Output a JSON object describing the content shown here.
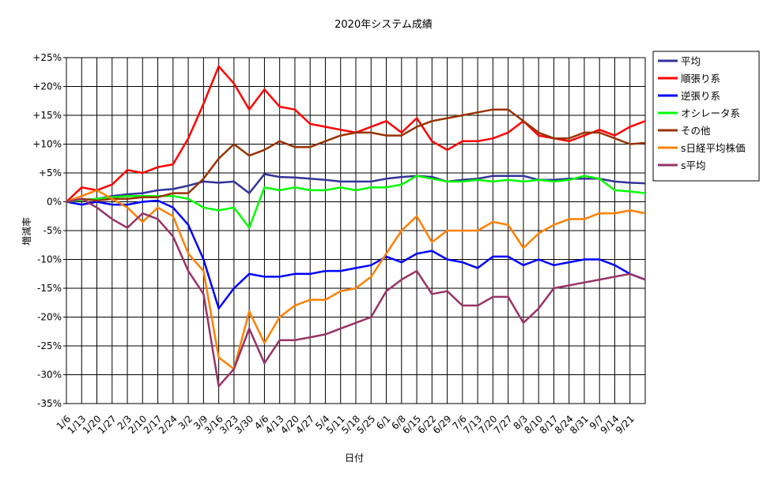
{
  "chart_data": {
    "type": "line",
    "title": "2020年システム成績",
    "xlabel": "日付",
    "ylabel": "増減率",
    "ylim": [
      -35,
      25
    ],
    "y_ticks": [
      25,
      20,
      15,
      10,
      5,
      0,
      -5,
      -10,
      -15,
      -20,
      -25,
      -30,
      -35
    ],
    "y_tick_labels": [
      "+25%",
      "+20%",
      "+15%",
      "+10%",
      "+5%",
      "0%",
      "-5%",
      "-10%",
      "-15%",
      "-20%",
      "-25%",
      "-30%",
      "-35%"
    ],
    "grid": true,
    "legend_position": "right",
    "x_tick_labels": [
      "1/6",
      "1/13",
      "1/20",
      "1/27",
      "2/3",
      "2/10",
      "2/17",
      "2/24",
      "3/2",
      "3/9",
      "3/16",
      "3/23",
      "3/30",
      "4/6",
      "4/13",
      "4/20",
      "4/27",
      "5/4",
      "5/11",
      "5/18",
      "5/25",
      "6/1",
      "6/8",
      "6/15",
      "6/22",
      "6/29",
      "7/6",
      "7/13",
      "7/20",
      "7/27",
      "8/3",
      "8/10",
      "8/17",
      "8/24",
      "8/31",
      "9/7",
      "9/14",
      "9/21"
    ],
    "series": [
      {
        "name": "平均",
        "color": "#333399",
        "points": [
          [
            0,
            0
          ],
          [
            1,
            0.3
          ],
          [
            2,
            0.5
          ],
          [
            3,
            1
          ],
          [
            4,
            1.3
          ],
          [
            5,
            1.5
          ],
          [
            6,
            2
          ],
          [
            7,
            2.2
          ],
          [
            8,
            2.8
          ],
          [
            9,
            3.5
          ],
          [
            10,
            3.3
          ],
          [
            11,
            3.5
          ],
          [
            12,
            1.5
          ],
          [
            13,
            4.8
          ],
          [
            14,
            4.3
          ],
          [
            15,
            4.2
          ],
          [
            16,
            4
          ],
          [
            17,
            3.8
          ],
          [
            18,
            3.5
          ],
          [
            19,
            3.5
          ],
          [
            20,
            3.5
          ],
          [
            21,
            4
          ],
          [
            22,
            4.3
          ],
          [
            23,
            4.5
          ],
          [
            24,
            4.3
          ],
          [
            25,
            3.5
          ],
          [
            26,
            3.8
          ],
          [
            27,
            4
          ],
          [
            28,
            4.5
          ],
          [
            29,
            4.5
          ],
          [
            30,
            4.5
          ],
          [
            31,
            3.8
          ],
          [
            32,
            3.8
          ],
          [
            33,
            4
          ],
          [
            34,
            4
          ],
          [
            35,
            4
          ],
          [
            36,
            3.5
          ],
          [
            37,
            3.3
          ],
          [
            38,
            3.2
          ]
        ]
      },
      {
        "name": "順張り系",
        "color": "#ff0000",
        "points": [
          [
            0,
            0
          ],
          [
            1,
            2.5
          ],
          [
            2,
            2
          ],
          [
            3,
            3
          ],
          [
            4,
            5.5
          ],
          [
            5,
            5
          ],
          [
            6,
            6
          ],
          [
            7,
            6.5
          ],
          [
            8,
            11
          ],
          [
            9,
            17
          ],
          [
            10,
            23.5
          ],
          [
            11,
            20.5
          ],
          [
            12,
            16
          ],
          [
            13,
            19.5
          ],
          [
            14,
            16.5
          ],
          [
            15,
            16
          ],
          [
            16,
            13.5
          ],
          [
            17,
            13
          ],
          [
            18,
            12.5
          ],
          [
            19,
            12
          ],
          [
            20,
            13
          ],
          [
            21,
            14
          ],
          [
            22,
            12
          ],
          [
            23,
            14.5
          ],
          [
            24,
            10.5
          ],
          [
            25,
            9
          ],
          [
            26,
            10.5
          ],
          [
            27,
            10.5
          ],
          [
            28,
            11
          ],
          [
            29,
            12
          ],
          [
            30,
            14
          ],
          [
            31,
            11.5
          ],
          [
            32,
            11
          ],
          [
            33,
            10.5
          ],
          [
            34,
            11.5
          ],
          [
            35,
            12.5
          ],
          [
            36,
            11.5
          ],
          [
            37,
            13
          ],
          [
            38,
            14
          ]
        ]
      },
      {
        "name": "逆張り系",
        "color": "#0000ff",
        "points": [
          [
            0,
            0
          ],
          [
            1,
            -0.5
          ],
          [
            2,
            0
          ],
          [
            3,
            -0.5
          ],
          [
            4,
            -0.5
          ],
          [
            5,
            0
          ],
          [
            6,
            0.2
          ],
          [
            7,
            -1
          ],
          [
            8,
            -4
          ],
          [
            9,
            -10
          ],
          [
            10,
            -18.5
          ],
          [
            11,
            -15
          ],
          [
            12,
            -12.5
          ],
          [
            13,
            -13
          ],
          [
            14,
            -13
          ],
          [
            15,
            -12.5
          ],
          [
            16,
            -12.5
          ],
          [
            17,
            -12
          ],
          [
            18,
            -12
          ],
          [
            19,
            -11.5
          ],
          [
            20,
            -11
          ],
          [
            21,
            -9.5
          ],
          [
            22,
            -10.5
          ],
          [
            23,
            -9
          ],
          [
            24,
            -8.5
          ],
          [
            25,
            -10
          ],
          [
            26,
            -10.5
          ],
          [
            27,
            -11.5
          ],
          [
            28,
            -9.5
          ],
          [
            29,
            -9.5
          ],
          [
            30,
            -11
          ],
          [
            31,
            -10
          ],
          [
            32,
            -11
          ],
          [
            33,
            -10.5
          ],
          [
            34,
            -10
          ],
          [
            35,
            -10
          ],
          [
            36,
            -11
          ],
          [
            37,
            -12.5
          ],
          [
            38,
            -13.5
          ]
        ]
      },
      {
        "name": "オシレータ系",
        "color": "#00ff00",
        "points": [
          [
            0,
            0
          ],
          [
            1,
            0.3
          ],
          [
            2,
            0.5
          ],
          [
            3,
            0.8
          ],
          [
            4,
            1
          ],
          [
            5,
            1
          ],
          [
            6,
            1
          ],
          [
            7,
            1
          ],
          [
            8,
            0.5
          ],
          [
            9,
            -1
          ],
          [
            10,
            -1.5
          ],
          [
            11,
            -1
          ],
          [
            12,
            -4.5
          ],
          [
            13,
            2.5
          ],
          [
            14,
            2
          ],
          [
            15,
            2.5
          ],
          [
            16,
            2
          ],
          [
            17,
            2
          ],
          [
            18,
            2.5
          ],
          [
            19,
            2
          ],
          [
            20,
            2.5
          ],
          [
            21,
            2.5
          ],
          [
            22,
            3
          ],
          [
            23,
            4.5
          ],
          [
            24,
            4
          ],
          [
            25,
            3.5
          ],
          [
            26,
            3.5
          ],
          [
            27,
            3.8
          ],
          [
            28,
            3.5
          ],
          [
            29,
            3.8
          ],
          [
            30,
            3.5
          ],
          [
            31,
            3.8
          ],
          [
            32,
            3.5
          ],
          [
            33,
            3.8
          ],
          [
            34,
            4.5
          ],
          [
            35,
            4
          ],
          [
            36,
            2
          ],
          [
            37,
            1.8
          ],
          [
            38,
            1.5
          ]
        ]
      },
      {
        "name": "その他",
        "color": "#993300",
        "points": [
          [
            0,
            0
          ],
          [
            1,
            0.5
          ],
          [
            2,
            0.2
          ],
          [
            3,
            0.5
          ],
          [
            4,
            0.5
          ],
          [
            5,
            0.8
          ],
          [
            6,
            0.8
          ],
          [
            7,
            1.5
          ],
          [
            8,
            1.5
          ],
          [
            9,
            4
          ],
          [
            10,
            7.5
          ],
          [
            11,
            10
          ],
          [
            12,
            8
          ],
          [
            13,
            9
          ],
          [
            14,
            10.5
          ],
          [
            15,
            9.5
          ],
          [
            16,
            9.5
          ],
          [
            17,
            10.5
          ],
          [
            18,
            11.5
          ],
          [
            19,
            12
          ],
          [
            20,
            12
          ],
          [
            21,
            11.5
          ],
          [
            22,
            11.5
          ],
          [
            23,
            13
          ],
          [
            24,
            14
          ],
          [
            25,
            14.5
          ],
          [
            26,
            15
          ],
          [
            27,
            15.5
          ],
          [
            28,
            16
          ],
          [
            29,
            16
          ],
          [
            30,
            14
          ],
          [
            31,
            12
          ],
          [
            32,
            11
          ],
          [
            33,
            11
          ],
          [
            34,
            12
          ],
          [
            35,
            12
          ],
          [
            36,
            11
          ],
          [
            37,
            10
          ],
          [
            38,
            10.2
          ]
        ]
      },
      {
        "name": "s日経平均株価",
        "color": "#ff8000",
        "points": [
          [
            0,
            0
          ],
          [
            1,
            1
          ],
          [
            2,
            2
          ],
          [
            3,
            0.5
          ],
          [
            4,
            -1
          ],
          [
            5,
            -3.5
          ],
          [
            6,
            -1
          ],
          [
            7,
            -2.5
          ],
          [
            8,
            -9
          ],
          [
            9,
            -12
          ],
          [
            10,
            -27
          ],
          [
            11,
            -29
          ],
          [
            12,
            -19
          ],
          [
            13,
            -24.5
          ],
          [
            14,
            -20
          ],
          [
            15,
            -18
          ],
          [
            16,
            -17
          ],
          [
            17,
            -17
          ],
          [
            18,
            -15.5
          ],
          [
            19,
            -15
          ],
          [
            20,
            -13
          ],
          [
            21,
            -9
          ],
          [
            22,
            -5
          ],
          [
            23,
            -2.5
          ],
          [
            24,
            -7
          ],
          [
            25,
            -5
          ],
          [
            26,
            -5
          ],
          [
            27,
            -5
          ],
          [
            28,
            -3.5
          ],
          [
            29,
            -4
          ],
          [
            30,
            -8
          ],
          [
            31,
            -5.5
          ],
          [
            32,
            -4
          ],
          [
            33,
            -3
          ],
          [
            34,
            -3
          ],
          [
            35,
            -2
          ],
          [
            36,
            -2
          ],
          [
            37,
            -1.5
          ],
          [
            38,
            -2
          ]
        ]
      },
      {
        "name": "s平均",
        "color": "#993366",
        "points": [
          [
            0,
            0
          ],
          [
            1,
            0.5
          ],
          [
            2,
            -1
          ],
          [
            3,
            -3
          ],
          [
            4,
            -4.5
          ],
          [
            5,
            -2
          ],
          [
            6,
            -3
          ],
          [
            7,
            -6
          ],
          [
            8,
            -12
          ],
          [
            9,
            -16
          ],
          [
            10,
            -32
          ],
          [
            11,
            -29
          ],
          [
            12,
            -22
          ],
          [
            13,
            -28
          ],
          [
            14,
            -24
          ],
          [
            15,
            -24
          ],
          [
            16,
            -23.5
          ],
          [
            17,
            -23
          ],
          [
            18,
            -22
          ],
          [
            19,
            -21
          ],
          [
            20,
            -20
          ],
          [
            21,
            -15.5
          ],
          [
            22,
            -13.5
          ],
          [
            23,
            -12
          ],
          [
            24,
            -16
          ],
          [
            25,
            -15.5
          ],
          [
            26,
            -18
          ],
          [
            27,
            -18
          ],
          [
            28,
            -16.5
          ],
          [
            29,
            -16.5
          ],
          [
            30,
            -21
          ],
          [
            31,
            -18.5
          ],
          [
            32,
            -15
          ],
          [
            33,
            -14.5
          ],
          [
            34,
            -14
          ],
          [
            35,
            -13.5
          ],
          [
            36,
            -13
          ],
          [
            37,
            -12.5
          ],
          [
            38,
            -13.5
          ]
        ]
      }
    ]
  }
}
